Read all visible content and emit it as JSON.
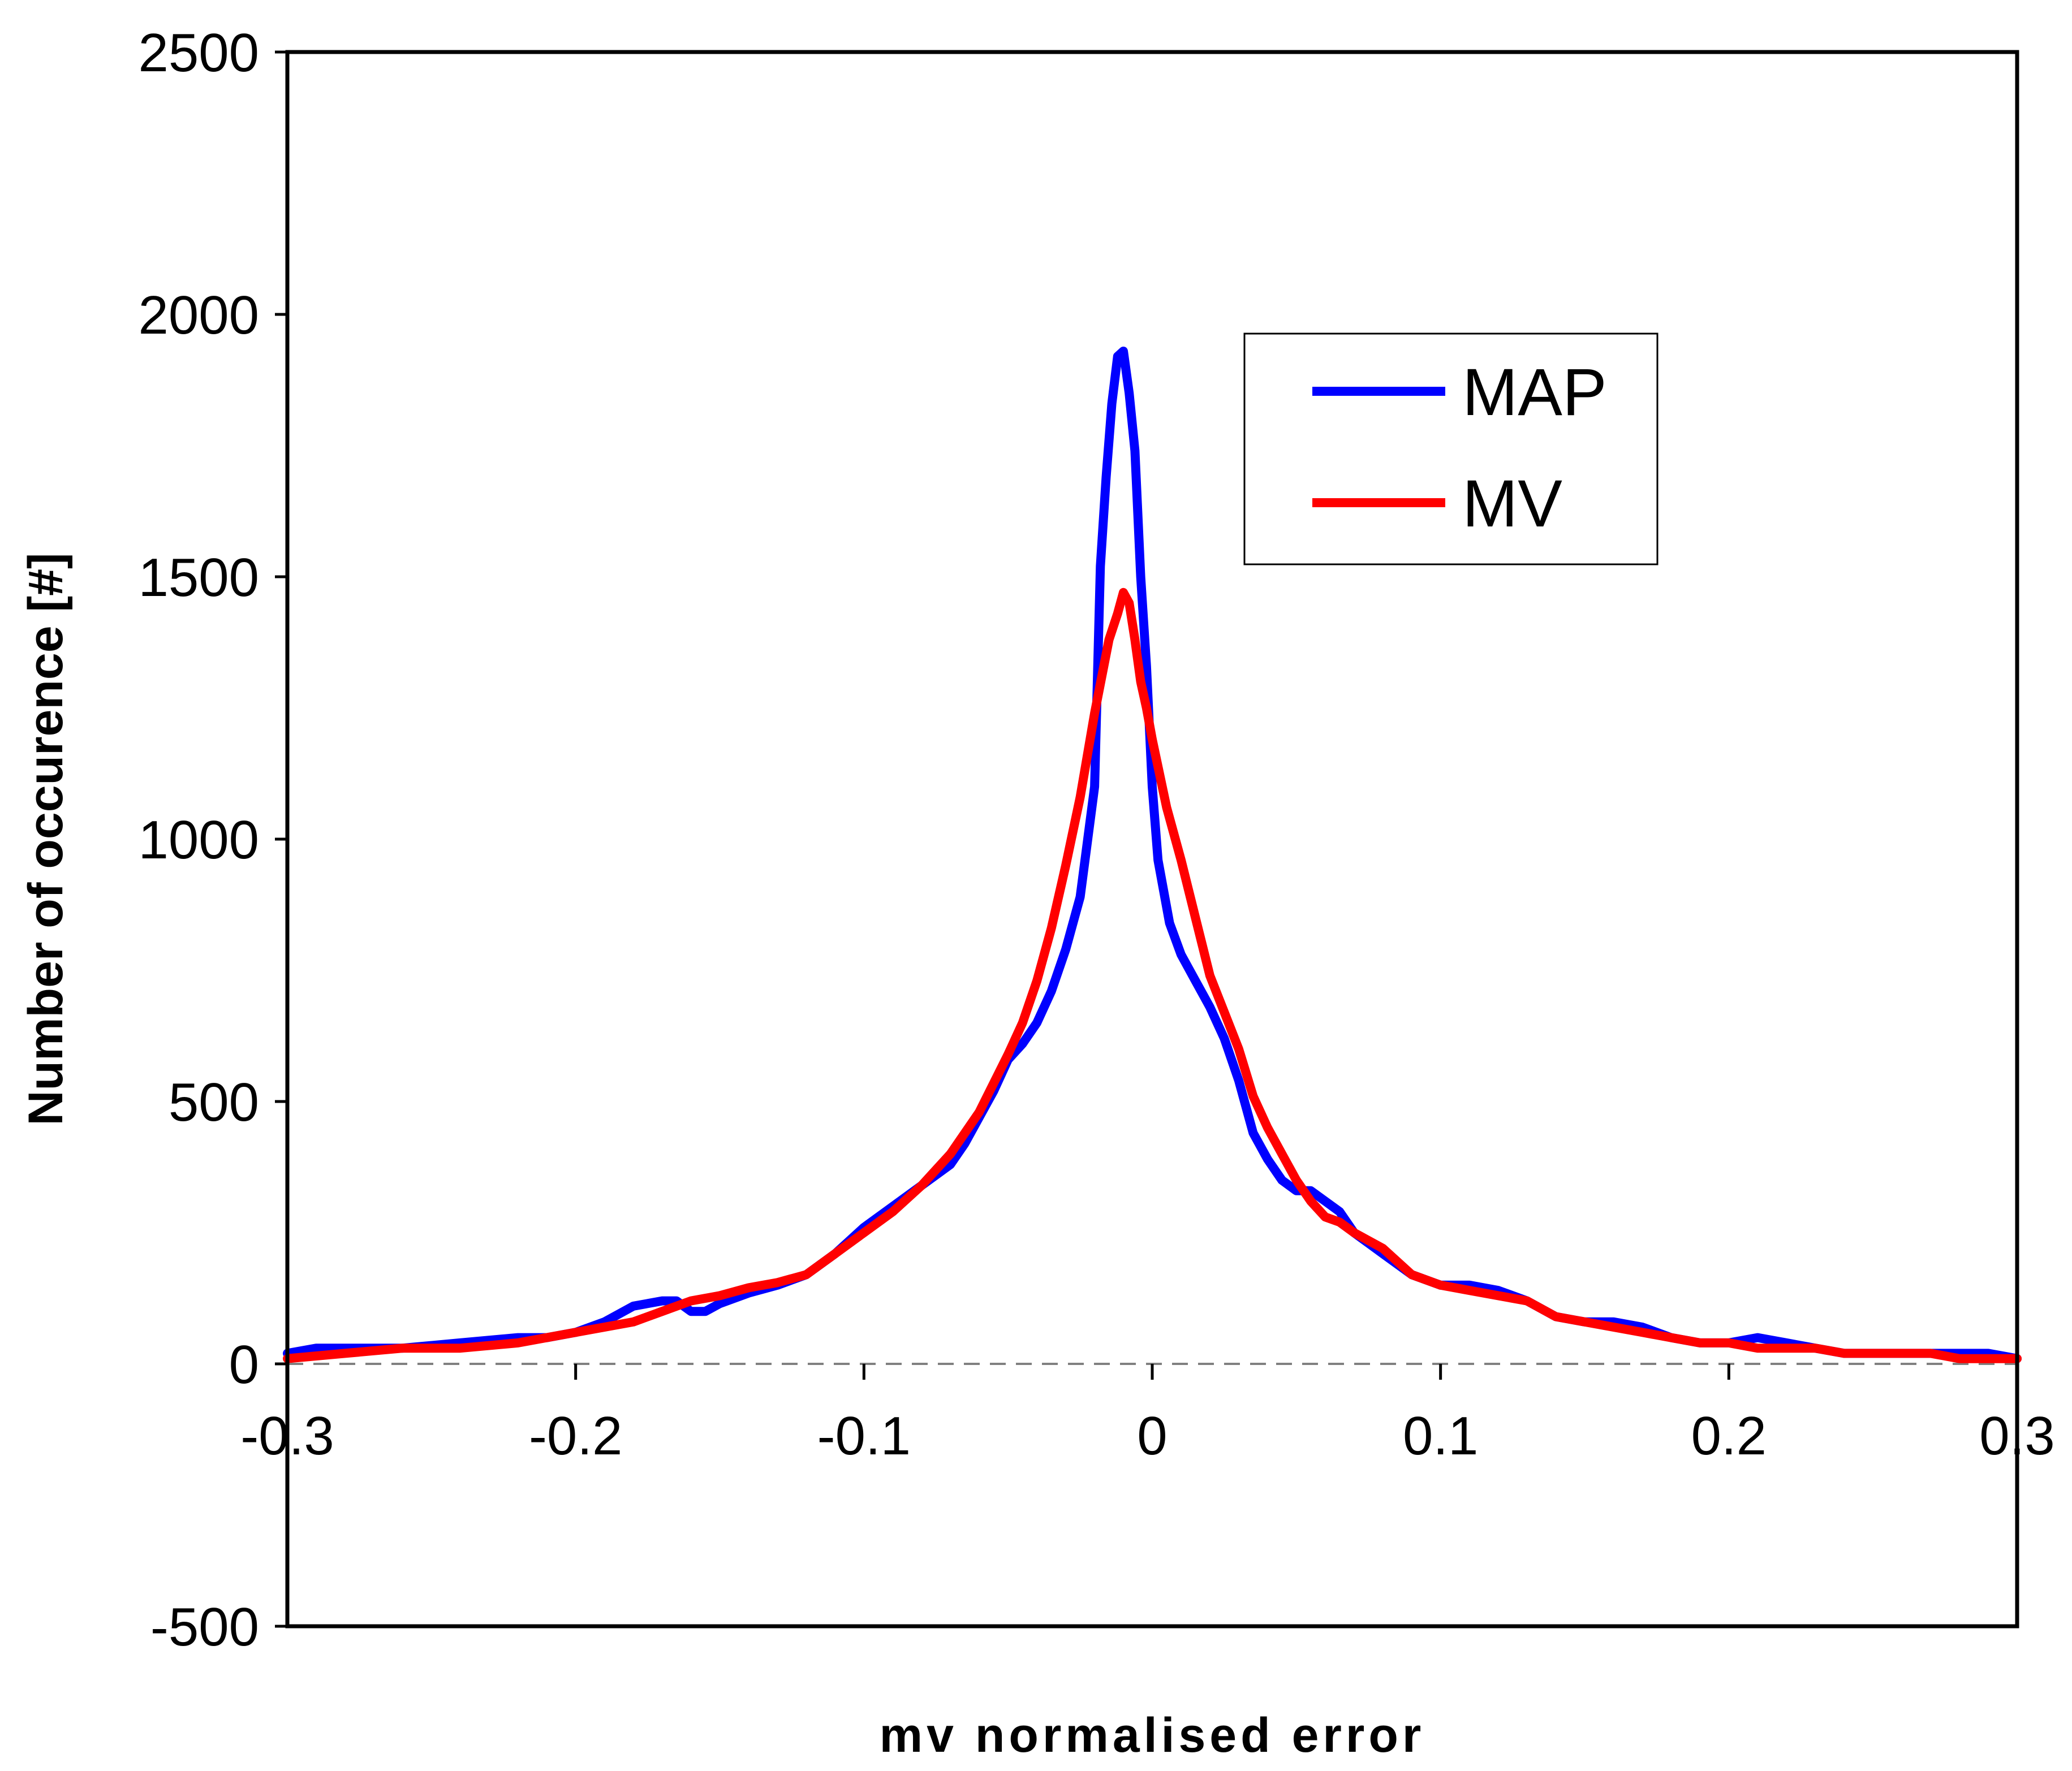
{
  "chart_data": {
    "type": "line",
    "title": "",
    "xlabel": "mv normalised error",
    "ylabel": "Number of occurence [#]",
    "xlim": [
      -0.3,
      0.3
    ],
    "ylim": [
      -500,
      2500
    ],
    "xticks": [
      -0.3,
      -0.2,
      -0.1,
      0,
      0.1,
      0.2,
      0.3
    ],
    "xtick_labels": [
      "-0.3",
      "-0.2",
      "-0.1",
      "0",
      "0.1",
      "0.2",
      "0.3"
    ],
    "yticks": [
      -500,
      0,
      500,
      1000,
      1500,
      2000,
      2500
    ],
    "ytick_labels": [
      "-500",
      "0",
      "500",
      "1000",
      "1500",
      "2000",
      "2500"
    ],
    "grid": false,
    "zero_line": "dashed",
    "legend": "top-right",
    "series": [
      {
        "name": "MAP",
        "color": "#0000ff",
        "x": [
          -0.3,
          -0.29,
          -0.28,
          -0.26,
          -0.24,
          -0.22,
          -0.21,
          -0.2,
          -0.19,
          -0.18,
          -0.17,
          -0.165,
          -0.16,
          -0.155,
          -0.15,
          -0.14,
          -0.13,
          -0.125,
          -0.12,
          -0.11,
          -0.1,
          -0.09,
          -0.08,
          -0.07,
          -0.065,
          -0.06,
          -0.055,
          -0.05,
          -0.045,
          -0.04,
          -0.035,
          -0.03,
          -0.025,
          -0.02,
          -0.018,
          -0.016,
          -0.014,
          -0.012,
          -0.01,
          -0.008,
          -0.006,
          -0.004,
          -0.002,
          0,
          0.002,
          0.004,
          0.006,
          0.01,
          0.015,
          0.02,
          0.025,
          0.03,
          0.035,
          0.04,
          0.045,
          0.05,
          0.055,
          0.06,
          0.065,
          0.07,
          0.08,
          0.09,
          0.1,
          0.11,
          0.12,
          0.13,
          0.14,
          0.15,
          0.16,
          0.17,
          0.18,
          0.19,
          0.2,
          0.21,
          0.22,
          0.23,
          0.24,
          0.25,
          0.26,
          0.27,
          0.28,
          0.29,
          0.3
        ],
        "values": [
          20,
          30,
          30,
          30,
          40,
          50,
          50,
          60,
          80,
          110,
          120,
          120,
          100,
          100,
          115,
          135,
          150,
          160,
          170,
          210,
          260,
          300,
          340,
          380,
          420,
          470,
          520,
          580,
          610,
          650,
          710,
          790,
          890,
          1100,
          1520,
          1690,
          1830,
          1920,
          1930,
          1850,
          1740,
          1500,
          1330,
          1100,
          960,
          900,
          840,
          780,
          730,
          680,
          620,
          540,
          440,
          390,
          350,
          330,
          330,
          310,
          290,
          250,
          210,
          170,
          150,
          150,
          140,
          120,
          90,
          80,
          80,
          70,
          50,
          40,
          40,
          50,
          40,
          30,
          20,
          20,
          20,
          20,
          20,
          20,
          10
        ]
      },
      {
        "name": "MV",
        "color": "#ff0000",
        "x": [
          -0.3,
          -0.28,
          -0.26,
          -0.24,
          -0.22,
          -0.2,
          -0.18,
          -0.17,
          -0.16,
          -0.15,
          -0.14,
          -0.13,
          -0.12,
          -0.11,
          -0.1,
          -0.09,
          -0.08,
          -0.07,
          -0.06,
          -0.05,
          -0.045,
          -0.04,
          -0.035,
          -0.03,
          -0.025,
          -0.02,
          -0.015,
          -0.012,
          -0.01,
          -0.008,
          -0.006,
          -0.004,
          -0.002,
          0,
          0.005,
          0.01,
          0.015,
          0.02,
          0.025,
          0.03,
          0.035,
          0.04,
          0.045,
          0.05,
          0.055,
          0.06,
          0.065,
          0.07,
          0.08,
          0.09,
          0.1,
          0.11,
          0.12,
          0.13,
          0.14,
          0.15,
          0.16,
          0.17,
          0.18,
          0.19,
          0.2,
          0.21,
          0.22,
          0.23,
          0.24,
          0.25,
          0.26,
          0.27,
          0.28,
          0.29,
          0.3
        ],
        "values": [
          10,
          20,
          30,
          30,
          40,
          60,
          80,
          100,
          120,
          130,
          145,
          155,
          170,
          210,
          250,
          290,
          340,
          400,
          480,
          590,
          650,
          730,
          830,
          950,
          1080,
          1240,
          1380,
          1430,
          1470,
          1450,
          1380,
          1300,
          1250,
          1190,
          1060,
          960,
          850,
          740,
          670,
          600,
          510,
          450,
          400,
          350,
          310,
          280,
          270,
          250,
          220,
          170,
          150,
          140,
          130,
          120,
          90,
          80,
          70,
          60,
          50,
          40,
          40,
          30,
          30,
          30,
          20,
          20,
          20,
          20,
          10,
          10,
          10
        ]
      }
    ]
  }
}
